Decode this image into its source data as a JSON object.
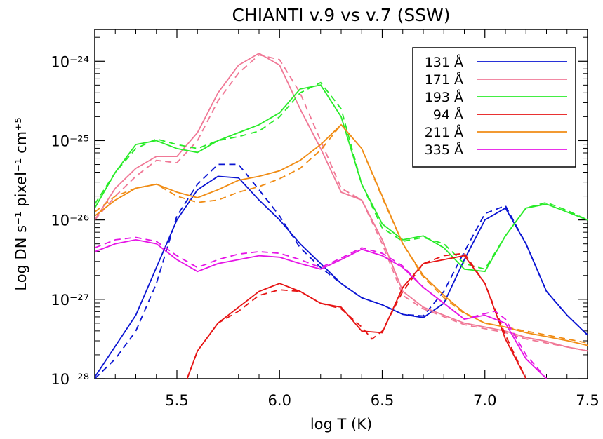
{
  "chart_data": {
    "type": "line",
    "title": "CHIANTI v.9 vs v.7 (SSW)",
    "xlabel": "log T (K)",
    "ylabel": "Log DN s⁻¹ pixel⁻¹ cm⁺⁵",
    "xlim": [
      5.1,
      7.5
    ],
    "ylim_log10": [
      -28,
      -23.6
    ],
    "y_scale": "log",
    "x_ticks": [
      "5.5",
      "6.0",
      "6.5",
      "7.0",
      "7.5"
    ],
    "x_tick_values": [
      5.5,
      6.0,
      6.5,
      7.0,
      7.5
    ],
    "y_ticks": [
      "10⁻²⁴",
      "10⁻²⁵",
      "10⁻²⁶",
      "10⁻²⁷",
      "10⁻²⁸"
    ],
    "y_tick_log10": [
      -24,
      -25,
      -26,
      -27,
      -28
    ],
    "legend_position": "top-right",
    "line_styles": {
      "solid": "CHIANTI v.9",
      "dashed": "CHIANTI v.7"
    },
    "series": [
      {
        "name": "131 Å",
        "color": "#0a14d2",
        "solid": [
          [
            5.1,
            -27.98
          ],
          [
            5.3,
            -27.2
          ],
          [
            5.5,
            -26.0
          ],
          [
            5.6,
            -25.62
          ],
          [
            5.7,
            -25.45
          ],
          [
            5.8,
            -25.47
          ],
          [
            5.9,
            -25.75
          ],
          [
            6.0,
            -26.0
          ],
          [
            6.1,
            -26.3
          ],
          [
            6.2,
            -26.55
          ],
          [
            6.3,
            -26.8
          ],
          [
            6.4,
            -26.98
          ],
          [
            6.5,
            -27.07
          ],
          [
            6.6,
            -27.19
          ],
          [
            6.7,
            -27.23
          ],
          [
            6.8,
            -27.05
          ],
          [
            6.9,
            -26.5
          ],
          [
            7.0,
            -26.0
          ],
          [
            7.1,
            -25.85
          ],
          [
            7.2,
            -26.3
          ],
          [
            7.3,
            -26.9
          ],
          [
            7.4,
            -27.2
          ],
          [
            7.5,
            -27.45
          ]
        ],
        "dashed": [
          [
            5.1,
            -28.0
          ],
          [
            5.2,
            -27.75
          ],
          [
            5.3,
            -27.4
          ],
          [
            5.4,
            -26.8
          ],
          [
            5.5,
            -25.95
          ],
          [
            5.6,
            -25.55
          ],
          [
            5.7,
            -25.3
          ],
          [
            5.8,
            -25.3
          ],
          [
            5.9,
            -25.62
          ],
          [
            6.0,
            -25.95
          ],
          [
            6.1,
            -26.35
          ],
          [
            6.2,
            -26.6
          ],
          [
            6.3,
            -26.8
          ],
          [
            6.4,
            -26.98
          ],
          [
            6.5,
            -27.07
          ],
          [
            6.6,
            -27.19
          ],
          [
            6.7,
            -27.21
          ],
          [
            6.8,
            -26.9
          ],
          [
            6.9,
            -26.4
          ],
          [
            7.0,
            -25.92
          ],
          [
            7.1,
            -25.82
          ],
          [
            7.2,
            -26.3
          ],
          [
            7.3,
            -26.9
          ],
          [
            7.4,
            -27.2
          ],
          [
            7.5,
            -27.45
          ]
        ]
      },
      {
        "name": "171 Å",
        "color": "#f07896",
        "solid": [
          [
            5.1,
            -26.0
          ],
          [
            5.2,
            -25.6
          ],
          [
            5.3,
            -25.35
          ],
          [
            5.4,
            -25.2
          ],
          [
            5.5,
            -25.2
          ],
          [
            5.6,
            -24.9
          ],
          [
            5.7,
            -24.4
          ],
          [
            5.8,
            -24.05
          ],
          [
            5.9,
            -23.9
          ],
          [
            6.0,
            -24.05
          ],
          [
            6.1,
            -24.6
          ],
          [
            6.2,
            -25.1
          ],
          [
            6.3,
            -25.65
          ],
          [
            6.4,
            -25.75
          ],
          [
            6.5,
            -26.25
          ],
          [
            6.6,
            -26.9
          ],
          [
            6.7,
            -27.1
          ],
          [
            6.8,
            -27.2
          ],
          [
            6.9,
            -27.3
          ],
          [
            7.0,
            -27.35
          ],
          [
            7.1,
            -27.4
          ],
          [
            7.2,
            -27.48
          ],
          [
            7.3,
            -27.53
          ],
          [
            7.4,
            -27.6
          ],
          [
            7.5,
            -27.65
          ]
        ],
        "dashed": [
          [
            5.1,
            -26.0
          ],
          [
            5.2,
            -25.7
          ],
          [
            5.3,
            -25.45
          ],
          [
            5.4,
            -25.25
          ],
          [
            5.5,
            -25.28
          ],
          [
            5.6,
            -25.0
          ],
          [
            5.7,
            -24.5
          ],
          [
            5.8,
            -24.15
          ],
          [
            5.9,
            -23.92
          ],
          [
            6.0,
            -23.98
          ],
          [
            6.1,
            -24.4
          ],
          [
            6.2,
            -25.0
          ],
          [
            6.3,
            -25.6
          ],
          [
            6.4,
            -25.75
          ],
          [
            6.5,
            -26.3
          ],
          [
            6.6,
            -26.95
          ],
          [
            6.7,
            -27.12
          ],
          [
            6.8,
            -27.22
          ],
          [
            6.9,
            -27.32
          ],
          [
            7.0,
            -27.37
          ],
          [
            7.1,
            -27.42
          ],
          [
            7.2,
            -27.5
          ],
          [
            7.3,
            -27.55
          ],
          [
            7.4,
            -27.6
          ],
          [
            7.5,
            -27.65
          ]
        ]
      },
      {
        "name": "193 Å",
        "color": "#28eb28",
        "solid": [
          [
            5.1,
            -25.85
          ],
          [
            5.2,
            -25.4
          ],
          [
            5.3,
            -25.05
          ],
          [
            5.4,
            -25.0
          ],
          [
            5.5,
            -25.1
          ],
          [
            5.6,
            -25.15
          ],
          [
            5.7,
            -25.0
          ],
          [
            5.8,
            -24.9
          ],
          [
            5.9,
            -24.8
          ],
          [
            6.0,
            -24.65
          ],
          [
            6.1,
            -24.35
          ],
          [
            6.2,
            -24.3
          ],
          [
            6.3,
            -24.7
          ],
          [
            6.4,
            -25.55
          ],
          [
            6.5,
            -26.05
          ],
          [
            6.6,
            -26.25
          ],
          [
            6.7,
            -26.2
          ],
          [
            6.8,
            -26.35
          ],
          [
            6.9,
            -26.62
          ],
          [
            7.0,
            -26.65
          ],
          [
            7.1,
            -26.2
          ],
          [
            7.2,
            -25.85
          ],
          [
            7.3,
            -25.8
          ],
          [
            7.4,
            -25.9
          ],
          [
            7.5,
            -26.0
          ]
        ],
        "dashed": [
          [
            5.1,
            -25.8
          ],
          [
            5.2,
            -25.4
          ],
          [
            5.3,
            -25.1
          ],
          [
            5.4,
            -24.98
          ],
          [
            5.5,
            -25.05
          ],
          [
            5.6,
            -25.1
          ],
          [
            5.7,
            -25.0
          ],
          [
            5.8,
            -24.95
          ],
          [
            5.9,
            -24.88
          ],
          [
            6.0,
            -24.7
          ],
          [
            6.1,
            -24.4
          ],
          [
            6.2,
            -24.27
          ],
          [
            6.3,
            -24.6
          ],
          [
            6.4,
            -25.55
          ],
          [
            6.5,
            -26.1
          ],
          [
            6.6,
            -26.27
          ],
          [
            6.7,
            -26.22
          ],
          [
            6.8,
            -26.3
          ],
          [
            6.9,
            -26.55
          ],
          [
            7.0,
            -26.62
          ],
          [
            7.1,
            -26.2
          ],
          [
            7.2,
            -25.85
          ],
          [
            7.3,
            -25.78
          ],
          [
            7.4,
            -25.88
          ],
          [
            7.5,
            -26.0
          ]
        ]
      },
      {
        "name": "94 Å",
        "color": "#e61414",
        "solid": [
          [
            5.55,
            -28.0
          ],
          [
            5.6,
            -27.65
          ],
          [
            5.7,
            -27.3
          ],
          [
            5.8,
            -27.1
          ],
          [
            5.9,
            -26.9
          ],
          [
            6.0,
            -26.8
          ],
          [
            6.1,
            -26.9
          ],
          [
            6.2,
            -27.05
          ],
          [
            6.3,
            -27.1
          ],
          [
            6.4,
            -27.4
          ],
          [
            6.5,
            -27.42
          ],
          [
            6.6,
            -26.85
          ],
          [
            6.7,
            -26.55
          ],
          [
            6.8,
            -26.5
          ],
          [
            6.9,
            -26.45
          ],
          [
            7.0,
            -26.8
          ],
          [
            7.1,
            -27.5
          ],
          [
            7.2,
            -28.0
          ]
        ],
        "dashed": [
          [
            5.55,
            -28.0
          ],
          [
            5.6,
            -27.65
          ],
          [
            5.7,
            -27.3
          ],
          [
            5.8,
            -27.15
          ],
          [
            5.9,
            -26.95
          ],
          [
            6.0,
            -26.88
          ],
          [
            6.1,
            -26.9
          ],
          [
            6.2,
            -27.05
          ],
          [
            6.3,
            -27.12
          ],
          [
            6.4,
            -27.35
          ],
          [
            6.45,
            -27.5
          ],
          [
            6.5,
            -27.4
          ],
          [
            6.6,
            -26.9
          ],
          [
            6.7,
            -26.55
          ],
          [
            6.8,
            -26.45
          ],
          [
            6.9,
            -26.42
          ],
          [
            7.0,
            -26.8
          ],
          [
            7.1,
            -27.45
          ],
          [
            7.2,
            -28.0
          ]
        ]
      },
      {
        "name": "211 Å",
        "color": "#f08c14",
        "solid": [
          [
            5.1,
            -25.95
          ],
          [
            5.2,
            -25.75
          ],
          [
            5.3,
            -25.6
          ],
          [
            5.4,
            -25.55
          ],
          [
            5.5,
            -25.65
          ],
          [
            5.6,
            -25.72
          ],
          [
            5.7,
            -25.62
          ],
          [
            5.8,
            -25.5
          ],
          [
            5.9,
            -25.45
          ],
          [
            6.0,
            -25.38
          ],
          [
            6.1,
            -25.25
          ],
          [
            6.2,
            -25.05
          ],
          [
            6.3,
            -24.8
          ],
          [
            6.4,
            -25.1
          ],
          [
            6.5,
            -25.7
          ],
          [
            6.6,
            -26.3
          ],
          [
            6.7,
            -26.7
          ],
          [
            6.8,
            -26.95
          ],
          [
            6.9,
            -27.17
          ],
          [
            7.0,
            -27.3
          ],
          [
            7.1,
            -27.35
          ],
          [
            7.2,
            -27.42
          ],
          [
            7.3,
            -27.47
          ],
          [
            7.4,
            -27.52
          ],
          [
            7.5,
            -27.58
          ]
        ],
        "dashed": [
          [
            5.1,
            -25.9
          ],
          [
            5.2,
            -25.7
          ],
          [
            5.3,
            -25.6
          ],
          [
            5.4,
            -25.55
          ],
          [
            5.5,
            -25.7
          ],
          [
            5.6,
            -25.78
          ],
          [
            5.7,
            -25.75
          ],
          [
            5.8,
            -25.65
          ],
          [
            5.9,
            -25.58
          ],
          [
            6.0,
            -25.48
          ],
          [
            6.1,
            -25.35
          ],
          [
            6.2,
            -25.12
          ],
          [
            6.3,
            -24.8
          ],
          [
            6.4,
            -25.1
          ],
          [
            6.5,
            -25.72
          ],
          [
            6.6,
            -26.3
          ],
          [
            6.7,
            -26.72
          ],
          [
            6.8,
            -26.98
          ],
          [
            6.9,
            -27.18
          ],
          [
            7.0,
            -27.3
          ],
          [
            7.1,
            -27.35
          ],
          [
            7.2,
            -27.4
          ],
          [
            7.3,
            -27.45
          ],
          [
            7.4,
            -27.5
          ],
          [
            7.5,
            -27.55
          ]
        ]
      },
      {
        "name": "335 Å",
        "color": "#e614e6",
        "solid": [
          [
            5.1,
            -26.4
          ],
          [
            5.2,
            -26.3
          ],
          [
            5.3,
            -26.25
          ],
          [
            5.4,
            -26.3
          ],
          [
            5.5,
            -26.5
          ],
          [
            5.6,
            -26.65
          ],
          [
            5.7,
            -26.55
          ],
          [
            5.8,
            -26.5
          ],
          [
            5.9,
            -26.45
          ],
          [
            6.0,
            -26.47
          ],
          [
            6.1,
            -26.55
          ],
          [
            6.2,
            -26.62
          ],
          [
            6.3,
            -26.5
          ],
          [
            6.4,
            -26.37
          ],
          [
            6.5,
            -26.45
          ],
          [
            6.6,
            -26.6
          ],
          [
            6.7,
            -26.85
          ],
          [
            6.8,
            -27.05
          ],
          [
            6.9,
            -27.25
          ],
          [
            7.0,
            -27.2
          ],
          [
            7.1,
            -27.3
          ],
          [
            7.2,
            -27.75
          ],
          [
            7.3,
            -28.0
          ]
        ],
        "dashed": [
          [
            5.1,
            -26.35
          ],
          [
            5.2,
            -26.25
          ],
          [
            5.3,
            -26.22
          ],
          [
            5.4,
            -26.27
          ],
          [
            5.5,
            -26.45
          ],
          [
            5.6,
            -26.6
          ],
          [
            5.7,
            -26.5
          ],
          [
            5.8,
            -26.43
          ],
          [
            5.9,
            -26.4
          ],
          [
            6.0,
            -26.42
          ],
          [
            6.1,
            -26.5
          ],
          [
            6.2,
            -26.6
          ],
          [
            6.3,
            -26.48
          ],
          [
            6.4,
            -26.35
          ],
          [
            6.5,
            -26.42
          ],
          [
            6.6,
            -26.58
          ],
          [
            6.7,
            -26.85
          ],
          [
            6.8,
            -27.05
          ],
          [
            6.9,
            -27.25
          ],
          [
            7.0,
            -27.18
          ],
          [
            7.05,
            -27.15
          ],
          [
            7.1,
            -27.25
          ],
          [
            7.2,
            -27.7
          ],
          [
            7.3,
            -28.0
          ]
        ]
      }
    ]
  }
}
